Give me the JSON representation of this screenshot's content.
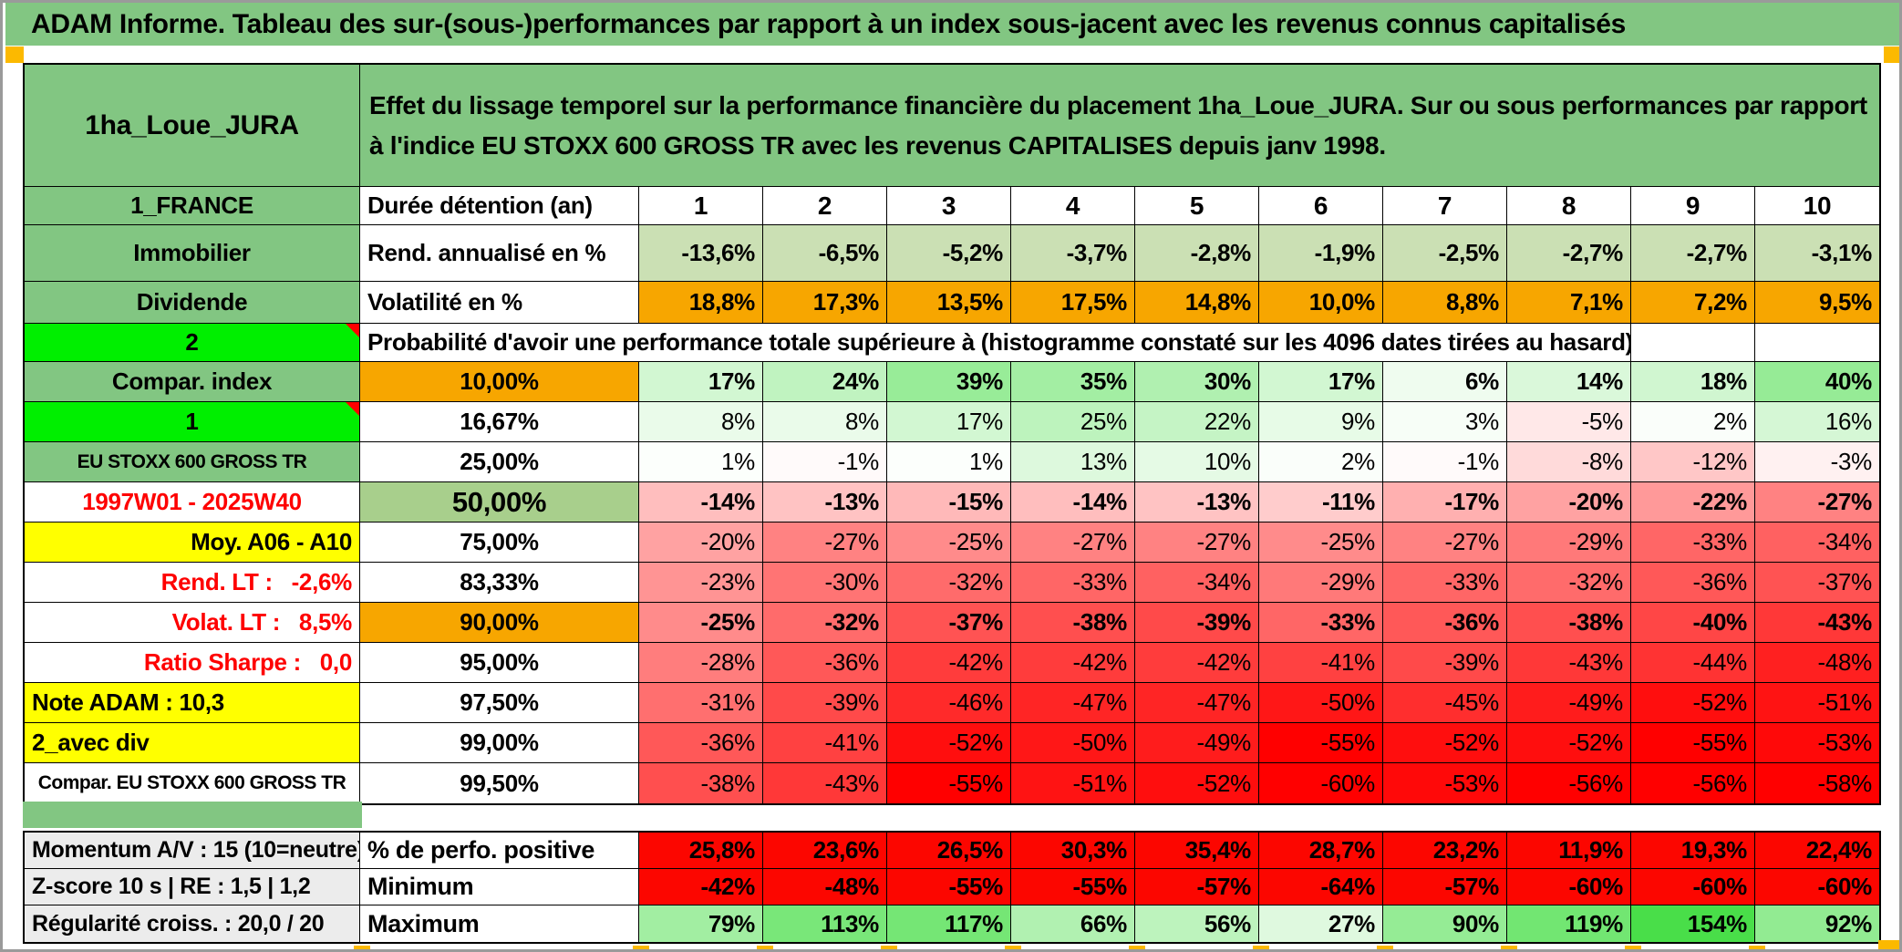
{
  "page": {
    "title": "ADAM Informe. Tableau des sur-(sous-)performances par rapport à un index sous-jacent avec les revenus connus capitalisés"
  },
  "header": {
    "name": "1ha_Loue_JURA",
    "description": "Effet du lissage temporel sur la performance financière du placement 1ha_Loue_JURA. Sur ou sous performances par rapport à l'indice EU STOXX 600 GROSS TR avec les revenus CAPITALISES depuis janv 1998."
  },
  "colors": {
    "green": "#82c682",
    "bright_green": "#00ef00",
    "orange": "#f7a600",
    "yellow": "#ffff00",
    "mid_green": "#a8cf8c",
    "light_green": "#cbe0b4",
    "gray": "#ececec",
    "red_text": "#fe0000",
    "solid_red": "#fc0600",
    "marker_orange": "#fcb900"
  },
  "top_rows": {
    "duration": {
      "label": "1_FRANCE",
      "header": "Durée détention (an)",
      "values": [
        "1",
        "2",
        "3",
        "4",
        "5",
        "6",
        "7",
        "8",
        "9",
        "10"
      ]
    },
    "rendement": {
      "label": "Immobilier",
      "header": "Rend. annualisé en %",
      "values": [
        "-13,6%",
        "-6,5%",
        "-5,2%",
        "-3,7%",
        "-2,8%",
        "-1,9%",
        "-2,5%",
        "-2,7%",
        "-2,7%",
        "-3,1%"
      ]
    },
    "volatilite": {
      "label": "Dividende",
      "header": "Volatilité en %",
      "values": [
        "18,8%",
        "17,3%",
        "13,5%",
        "17,5%",
        "14,8%",
        "10,0%",
        "8,8%",
        "7,1%",
        "7,2%",
        "9,5%"
      ]
    },
    "probabilite": {
      "label": "2",
      "text": "Probabilité d'avoir une performance totale supérieure à (histogramme constaté sur les 4096 dates tirées au hasard)"
    }
  },
  "prob_rows": [
    {
      "label": "Compar. index",
      "label_style": "green-center",
      "threshold": "10,00%",
      "threshold_style": "orange",
      "bold": true,
      "values": [
        17,
        24,
        39,
        35,
        30,
        17,
        6,
        14,
        18,
        40
      ]
    },
    {
      "label": "1",
      "label_style": "bright-center",
      "corner": true,
      "threshold": "16,67%",
      "threshold_style": "white",
      "bold": false,
      "values": [
        8,
        8,
        17,
        25,
        22,
        9,
        3,
        -5,
        2,
        16
      ]
    },
    {
      "label": "EU STOXX 600 GROSS TR",
      "label_style": "green-center-small",
      "threshold": "25,00%",
      "threshold_style": "white",
      "bold": false,
      "values": [
        1,
        -1,
        1,
        13,
        10,
        2,
        -1,
        -8,
        -12,
        -3
      ]
    },
    {
      "label": "1997W01 - 2025W40",
      "label_style": "red-center",
      "threshold": "50,00%",
      "threshold_style": "midgreen",
      "bold": true,
      "values": [
        -14,
        -13,
        -15,
        -14,
        -13,
        -11,
        -17,
        -20,
        -22,
        -27
      ]
    },
    {
      "label": "Moy. A06 - A10",
      "label_style": "yellow-right",
      "threshold": "75,00%",
      "threshold_style": "white",
      "bold": false,
      "values": [
        -20,
        -27,
        -25,
        -27,
        -27,
        -25,
        -27,
        -29,
        -33,
        -34
      ]
    },
    {
      "label": "Rend. LT :   -2,6%",
      "label_style": "red-right",
      "threshold": "83,33%",
      "threshold_style": "white",
      "bold": false,
      "values": [
        -23,
        -30,
        -32,
        -33,
        -34,
        -29,
        -33,
        -32,
        -36,
        -37
      ]
    },
    {
      "label": "Volat. LT :   8,5%",
      "label_style": "red-right",
      "threshold": "90,00%",
      "threshold_style": "orange",
      "bold": true,
      "values": [
        -25,
        -32,
        -37,
        -38,
        -39,
        -33,
        -36,
        -38,
        -40,
        -43
      ]
    },
    {
      "label": "Ratio Sharpe :   0,0",
      "label_style": "red-right",
      "threshold": "95,00%",
      "threshold_style": "white",
      "bold": false,
      "values": [
        -28,
        -36,
        -42,
        -42,
        -42,
        -41,
        -39,
        -43,
        -44,
        -48
      ]
    },
    {
      "label": "Note ADAM : 10,3",
      "label_style": "yellow-left",
      "threshold": "97,50%",
      "threshold_style": "white",
      "bold": false,
      "values": [
        -31,
        -39,
        -46,
        -47,
        -47,
        -50,
        -45,
        -49,
        -52,
        -51
      ]
    },
    {
      "label": "2_avec div",
      "label_style": "yellow-left",
      "threshold": "99,00%",
      "threshold_style": "white",
      "bold": false,
      "values": [
        -36,
        -41,
        -52,
        -50,
        -49,
        -55,
        -52,
        -52,
        -55,
        -53
      ]
    },
    {
      "label": "Compar. EU STOXX 600 GROSS TR",
      "label_style": "white-center-small",
      "threshold": "99,50%",
      "threshold_style": "white",
      "bold": false,
      "values": [
        -38,
        -43,
        -55,
        -51,
        -52,
        -60,
        -53,
        -56,
        -56,
        -58
      ]
    }
  ],
  "bottom_rows": [
    {
      "label": "Momentum A/V : 15 (10=neutre)",
      "header": "% de perfo. positive",
      "fill": "red",
      "values": [
        "25,8%",
        "23,6%",
        "26,5%",
        "30,3%",
        "35,4%",
        "28,7%",
        "23,2%",
        "11,9%",
        "19,3%",
        "22,4%"
      ],
      "numbers": [
        25.8,
        23.6,
        26.5,
        30.3,
        35.4,
        28.7,
        23.2,
        11.9,
        19.3,
        22.4
      ]
    },
    {
      "label": "Z-score 10 s | RE : 1,5 | 1,2",
      "header": "Minimum",
      "fill": "red",
      "values": [
        "-42%",
        "-48%",
        "-55%",
        "-55%",
        "-57%",
        "-64%",
        "-57%",
        "-60%",
        "-60%",
        "-60%"
      ],
      "numbers": [
        -42,
        -48,
        -55,
        -55,
        -57,
        -64,
        -57,
        -60,
        -60,
        -60
      ]
    },
    {
      "label": "Régularité croiss. : 20,0 / 20",
      "header": "Maximum",
      "fill": "green",
      "values": [
        "79%",
        "113%",
        "117%",
        "66%",
        "56%",
        "27%",
        "90%",
        "119%",
        "154%",
        "92%"
      ],
      "numbers": [
        79,
        113,
        117,
        66,
        56,
        27,
        90,
        119,
        154,
        92
      ]
    }
  ]
}
